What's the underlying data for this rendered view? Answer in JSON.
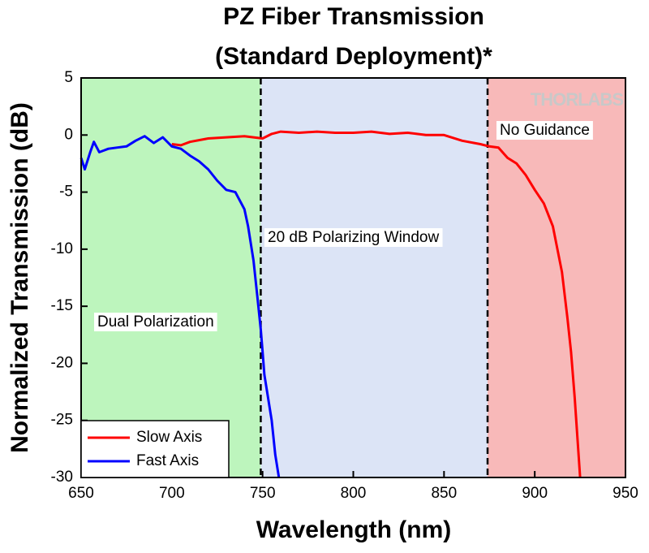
{
  "chart_data": {
    "type": "line",
    "title": "PZ Fiber Transmission",
    "subtitle": "(Standard Deployment)*",
    "x_label": "Wavelength (nm)",
    "y_label": "Normalized Transmission (dB)",
    "watermark": "THORLABS",
    "xlim": [
      650,
      950
    ],
    "xticks": [
      650,
      700,
      750,
      800,
      850,
      900,
      950
    ],
    "ylim": [
      -30,
      5
    ],
    "yticks": [
      -30,
      -25,
      -20,
      -15,
      -10,
      -5,
      0,
      5
    ],
    "legend": "lower left",
    "regions": [
      {
        "x0": 650,
        "x1": 749,
        "color": "#bdf5bd",
        "label": "Dual Polarization"
      },
      {
        "x0": 749,
        "x1": 874,
        "color": "#dce4f6",
        "label": "20 dB Polarizing Window"
      },
      {
        "x0": 874,
        "x1": 950,
        "color": "#f8b9b9",
        "label": "No Guidance"
      }
    ],
    "series": [
      {
        "name": "Slow Axis",
        "color": "#ff0000",
        "x": [
          700,
          705,
          710,
          720,
          730,
          740,
          750,
          755,
          760,
          770,
          780,
          790,
          800,
          810,
          820,
          830,
          840,
          850,
          860,
          870,
          875,
          880,
          885,
          890,
          895,
          900,
          905,
          910,
          915,
          918,
          920,
          922,
          925
        ],
        "values": [
          -0.8,
          -0.9,
          -0.6,
          -0.3,
          -0.2,
          -0.1,
          -0.3,
          0.1,
          0.3,
          0.2,
          0.3,
          0.2,
          0.2,
          0.3,
          0.1,
          0.2,
          0.0,
          0.0,
          -0.5,
          -0.8,
          -1.0,
          -1.1,
          -2.0,
          -2.5,
          -3.5,
          -4.8,
          -6,
          -8,
          -12,
          -16,
          -19,
          -23,
          -30
        ]
      },
      {
        "name": "Fast Axis",
        "color": "#0000ff",
        "x": [
          650,
          652,
          655,
          657,
          660,
          665,
          670,
          675,
          680,
          685,
          690,
          695,
          700,
          705,
          710,
          715,
          720,
          725,
          730,
          735,
          740,
          742,
          745,
          747,
          749,
          750,
          751,
          753,
          755,
          757,
          759
        ],
        "values": [
          -2.0,
          -3,
          -1.5,
          -0.6,
          -1.5,
          -1.2,
          -1.1,
          -1.0,
          -0.5,
          -0.1,
          -0.7,
          -0.2,
          -1.0,
          -1.2,
          -1.8,
          -2.3,
          -3.0,
          -4.0,
          -4.8,
          -5.0,
          -6.5,
          -8,
          -11,
          -14,
          -17,
          -19,
          -21,
          -23,
          -25,
          -28,
          -30
        ]
      }
    ]
  }
}
